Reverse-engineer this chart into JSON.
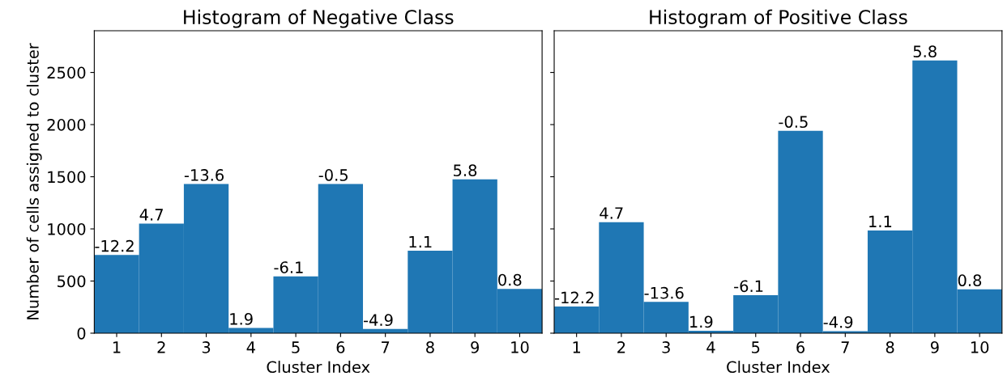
{
  "chart_data": [
    {
      "type": "bar",
      "title": "Histogram of Negative Class",
      "xlabel": "Cluster Index",
      "ylabel": "Number of cells assigned to cluster",
      "categories": [
        "1",
        "2",
        "3",
        "4",
        "5",
        "6",
        "7",
        "8",
        "9",
        "10"
      ],
      "values": [
        750,
        1050,
        1430,
        50,
        545,
        1430,
        40,
        790,
        1475,
        425
      ],
      "annotations": [
        {
          "text": "-12.2",
          "x": "1",
          "y": 750
        },
        {
          "text": "4.7",
          "x": "2",
          "y": 1050
        },
        {
          "text": "-13.6",
          "x": "3",
          "y": 1430
        },
        {
          "text": "1.9",
          "x": "4",
          "y": 50
        },
        {
          "text": "-6.1",
          "x": "5",
          "y": 545
        },
        {
          "text": "-0.5",
          "x": "6",
          "y": 1430
        },
        {
          "text": "-4.9",
          "x": "7",
          "y": 40
        },
        {
          "text": "1.1",
          "x": "8",
          "y": 790
        },
        {
          "text": "5.8",
          "x": "9",
          "y": 1475
        },
        {
          "text": "0.8",
          "x": "10",
          "y": 425
        }
      ],
      "color": "#1f77b4",
      "ylim": [
        0,
        2900
      ],
      "yticks": [
        0,
        500,
        1000,
        1500,
        2000,
        2500
      ]
    },
    {
      "type": "bar",
      "title": "Histogram of Positive Class",
      "xlabel": "Cluster Index",
      "categories": [
        "1",
        "2",
        "3",
        "4",
        "5",
        "6",
        "7",
        "8",
        "9",
        "10"
      ],
      "values": [
        255,
        1065,
        300,
        23,
        365,
        1940,
        20,
        985,
        2615,
        420
      ],
      "annotations": [
        {
          "text": "-12.2",
          "x": "1",
          "y": 255
        },
        {
          "text": "4.7",
          "x": "2",
          "y": 1065
        },
        {
          "text": "-13.6",
          "x": "3",
          "y": 300
        },
        {
          "text": "1.9",
          "x": "4",
          "y": 23
        },
        {
          "text": "-6.1",
          "x": "5",
          "y": 365
        },
        {
          "text": "-0.5",
          "x": "6",
          "y": 1940
        },
        {
          "text": "-4.9",
          "x": "7",
          "y": 20
        },
        {
          "text": "1.1",
          "x": "8",
          "y": 985
        },
        {
          "text": "5.8",
          "x": "9",
          "y": 2615
        },
        {
          "text": "0.8",
          "x": "10",
          "y": 420
        }
      ],
      "color": "#1f77b4",
      "ylim": [
        0,
        2900
      ],
      "yticks": [
        0,
        500,
        1000,
        1500,
        2000,
        2500
      ],
      "tick_labels": "x"
    }
  ]
}
